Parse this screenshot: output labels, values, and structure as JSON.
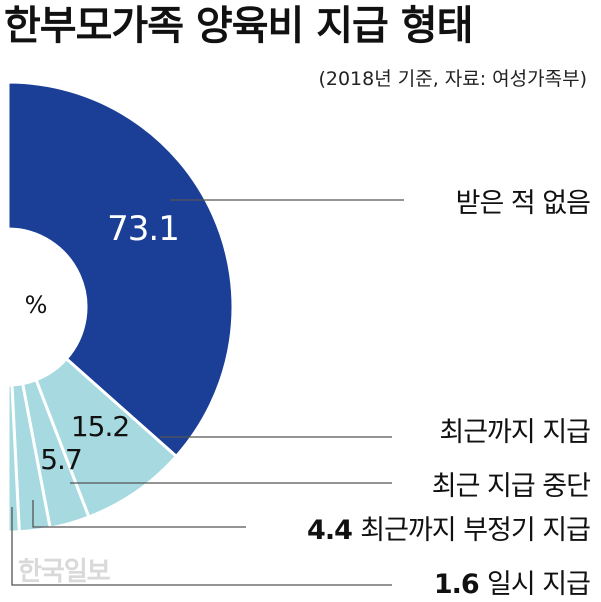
{
  "title": "한부모가족 양육비 지급 형태",
  "subtitle": "(2018년 기준, 자료: 여성가족부)",
  "watermark": "한국일보",
  "chart_data": {
    "type": "pie",
    "center_label": "%",
    "slices": [
      {
        "label": "받은 적 없음",
        "value": 73.1,
        "color": "#1b3f97",
        "value_label": "73.1",
        "legend_value": ""
      },
      {
        "label": "최근까지 지급",
        "value": 15.2,
        "color": "#a6d9e0",
        "value_label": "15.2",
        "legend_value": ""
      },
      {
        "label": "최근 지급 중단",
        "value": 5.7,
        "color": "#a6d9e0",
        "value_label": "5.7",
        "legend_value": ""
      },
      {
        "label": "최근까지 부정기 지급",
        "value": 4.4,
        "color": "#a6d9e0",
        "value_label": "",
        "legend_value": "4.4"
      },
      {
        "label": "일시 지급",
        "value": 1.6,
        "color": "#a6d9e0",
        "value_label": "",
        "legend_value": "1.6"
      }
    ]
  }
}
